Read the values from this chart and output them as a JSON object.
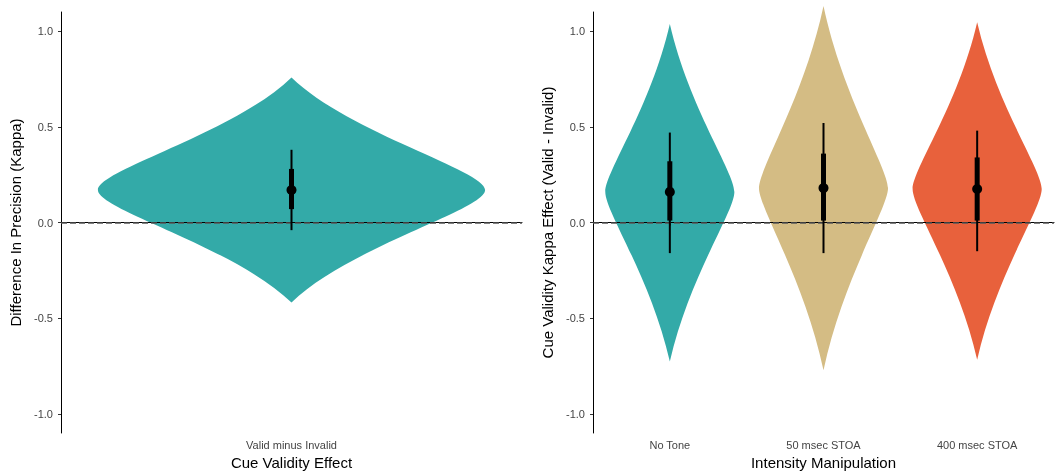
{
  "chart_data": [
    {
      "type": "box",
      "categories": [
        "Valid minus Invalid"
      ],
      "xlabel": "Cue Validity Effect",
      "ylabel": "Difference In Precision (Kappa)",
      "series": [
        {
          "color": "#000000",
          "boxes": [
            {
              "low": -0.04,
              "q1": 0.07,
              "median": 0.17,
              "q3": 0.28,
              "high": 0.38
            }
          ]
        }
      ],
      "ylim": [
        -1.1,
        1.1
      ],
      "yticks": [
        {
          "value": -1,
          "label": "-1.0"
        },
        {
          "value": -0.5,
          "label": "-0.5"
        },
        {
          "value": 0,
          "label": "0.0"
        },
        {
          "value": 0.5,
          "label": "0.5"
        },
        {
          "value": 1,
          "label": "1.0"
        }
      ],
      "ref_lines": [
        {
          "axis": "y",
          "value": 0,
          "label": null,
          "line_style": "dashed",
          "color": "#555555"
        }
      ],
      "grid": false
    },
    {
      "type": "box",
      "categories": [
        "No Tone",
        "50 msec STOA",
        "400 msec STOA"
      ],
      "xlabel": "Intensity Manipulation",
      "ylabel": "Cue Validity Kappa Effect (Valid - Invalid)",
      "series": [
        {
          "color": "#000000",
          "boxes": [
            {
              "low": -0.16,
              "q1": 0.01,
              "median": 0.16,
              "q3": 0.32,
              "high": 0.47
            },
            {
              "low": -0.16,
              "q1": 0.01,
              "median": 0.18,
              "q3": 0.36,
              "high": 0.52
            },
            {
              "low": -0.15,
              "q1": 0.01,
              "median": 0.175,
              "q3": 0.34,
              "high": 0.48
            }
          ]
        }
      ],
      "ylim": [
        -1.1,
        1.1
      ],
      "yticks": [
        {
          "value": -1,
          "label": "-1.0"
        },
        {
          "value": -0.5,
          "label": "-0.5"
        },
        {
          "value": 0,
          "label": "0.0"
        },
        {
          "value": 0.5,
          "label": "0.5"
        },
        {
          "value": 1,
          "label": "1.0"
        }
      ],
      "ref_lines": [
        {
          "axis": "y",
          "value": 0,
          "label": null,
          "line_style": "dashed",
          "color": "#555555"
        }
      ],
      "grid": false
    }
  ]
}
